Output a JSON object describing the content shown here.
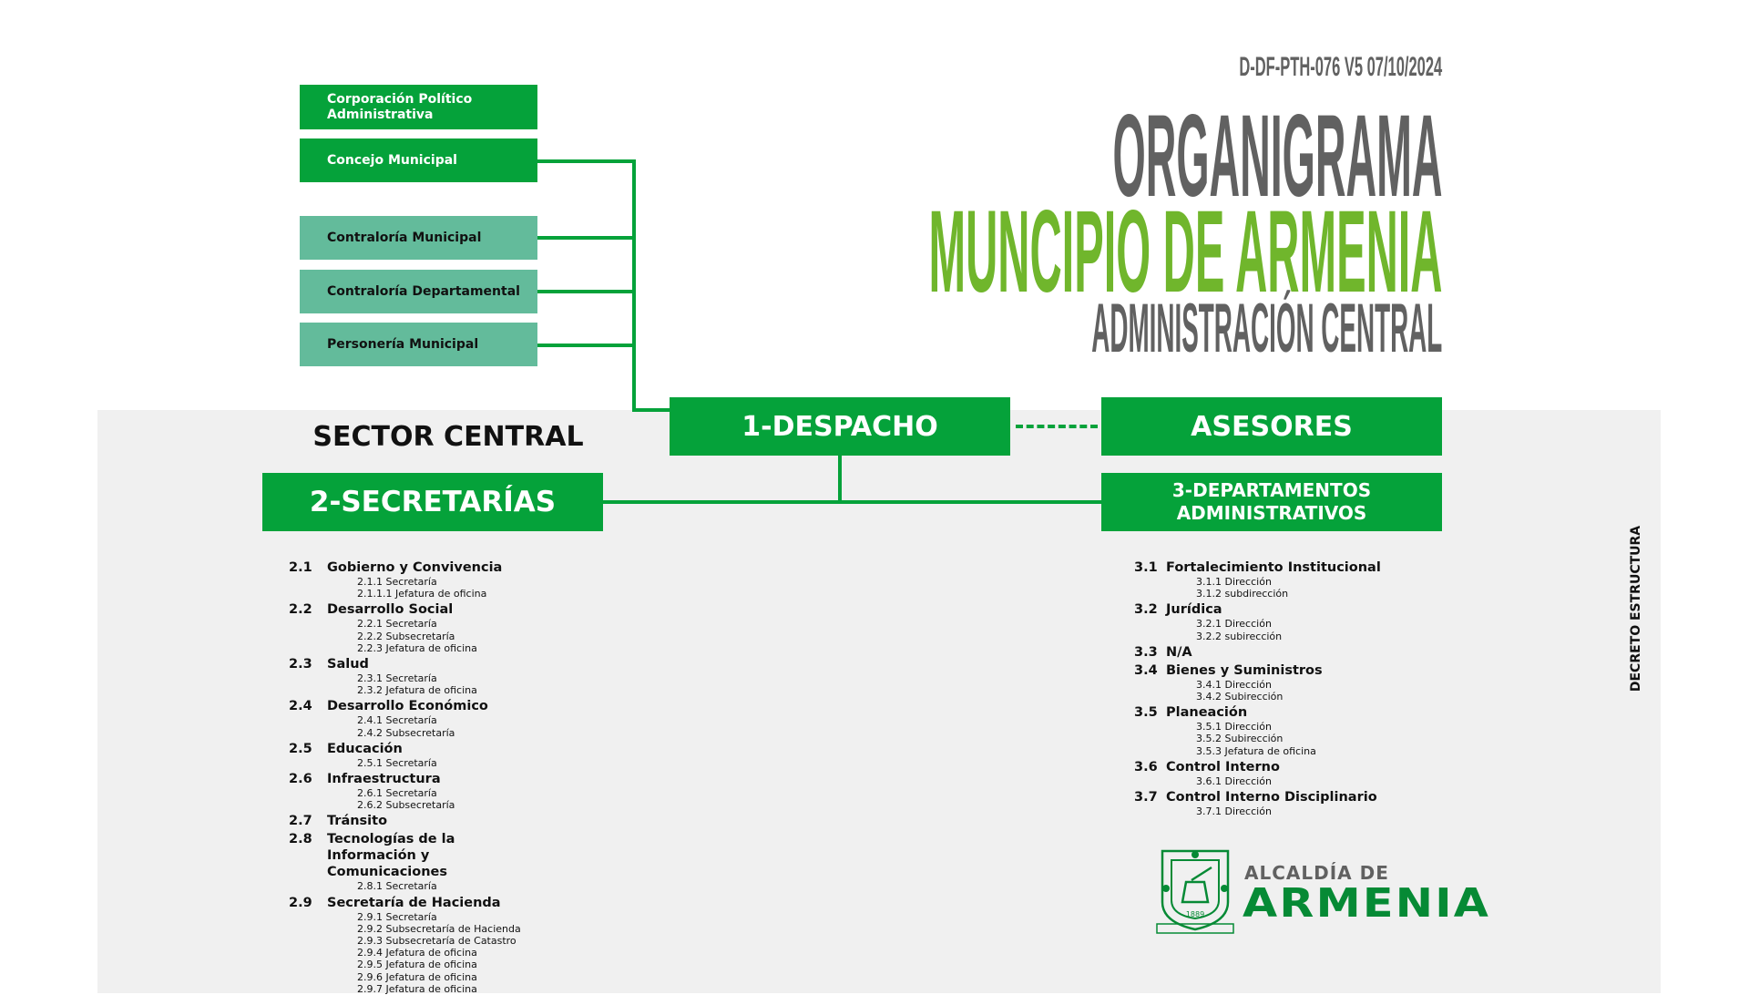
{
  "doc_code": "D-DF-PTH-076 V5 07/10/2024",
  "title": {
    "line1": "ORGANIGRAMA",
    "line2": "MUNCIPIO DE ARMENIA",
    "line3": "ADMINISTRACIÓN CENTRAL"
  },
  "colors": {
    "green": "#05a23a",
    "teal": "#63bb9b",
    "title_green": "#70b62c",
    "gray": "#616161",
    "panel": "#f0f0f0"
  },
  "top_boxes": [
    "Corporación Político Administrativa",
    "Concejo Municipal",
    "Contraloría Municipal",
    "Contraloría Departamental",
    "Personería Municipal"
  ],
  "sector_label": "SECTOR CENTRAL",
  "despacho": "1-DESPACHO",
  "asesores": "ASESORES",
  "secretarias": "2-SECRETARÍAS",
  "departamentos": "3-DEPARTAMENTOS ADMINISTRATIVOS",
  "side_label": "DECRETO ESTRUCTURA",
  "secretarias_list": [
    {
      "num": "2.1",
      "name": "Gobierno y Convivencia",
      "subs": [
        "2.1.1 Secretaría",
        "2.1.1.1 Jefatura de oficina"
      ]
    },
    {
      "num": "2.2",
      "name": "Desarrollo Social",
      "subs": [
        "2.2.1 Secretaría",
        "2.2.2 Subsecretaría",
        "2.2.3 Jefatura de oficina"
      ]
    },
    {
      "num": "2.3",
      "name": "Salud",
      "subs": [
        "2.3.1 Secretaría",
        "2.3.2 Jefatura de oficina"
      ]
    },
    {
      "num": "2.4",
      "name": "Desarrollo Económico",
      "subs": [
        "2.4.1 Secretaría",
        "2.4.2 Subsecretaría"
      ]
    },
    {
      "num": "2.5",
      "name": "Educación",
      "subs": [
        "2.5.1 Secretaría"
      ]
    },
    {
      "num": "2.6",
      "name": "Infraestructura",
      "subs": [
        "2.6.1 Secretaría",
        "2.6.2 Subsecretaría"
      ]
    },
    {
      "num": "2.7",
      "name": "Tránsito",
      "subs": []
    },
    {
      "num": "2.8",
      "name": "Tecnologías de la Información y Comunicaciones",
      "subs": [
        "2.8.1 Secretaría"
      ]
    },
    {
      "num": "2.9",
      "name": "Secretaría de Hacienda",
      "subs": [
        "2.9.1 Secretaría",
        "2.9.2 Subsecretaría de Hacienda",
        "2.9.3 Subsecretaría de Catastro",
        "2.9.4 Jefatura de oficina",
        "2.9.5 Jefatura de oficina",
        "2.9.6 Jefatura de oficina",
        "2.9.7 Jefatura de oficina"
      ]
    }
  ],
  "departamentos_list": [
    {
      "num": "3.1",
      "name": "Fortalecimiento Institucional",
      "subs": [
        "3.1.1 Dirección",
        "3.1.2 subdirección"
      ]
    },
    {
      "num": "3.2",
      "name": "Jurídica",
      "subs": [
        "3.2.1 Dirección",
        "3.2.2 subirección"
      ]
    },
    {
      "num": "3.3",
      "name": "N/A",
      "subs": []
    },
    {
      "num": "3.4",
      "name": "Bienes y Suministros",
      "subs": [
        "3.4.1 Dirección",
        "3.4.2 Subirección"
      ]
    },
    {
      "num": "3.5",
      "name": "Planeación",
      "subs": [
        "3.5.1 Dirección",
        "3.5.2 Subirección",
        "3.5.3 Jefatura de oficina"
      ]
    },
    {
      "num": "3.6",
      "name": "Control Interno",
      "subs": [
        "3.6.1 Dirección"
      ]
    },
    {
      "num": "3.7",
      "name": "Control Interno Disciplinario",
      "subs": [
        "3.7.1 Dirección"
      ]
    }
  ],
  "logo": {
    "line1": "ALCALDÍA DE",
    "line2": "ARMENIA",
    "year": "1889",
    "motto": "TRABAJO CIVILIZACIÓN"
  }
}
